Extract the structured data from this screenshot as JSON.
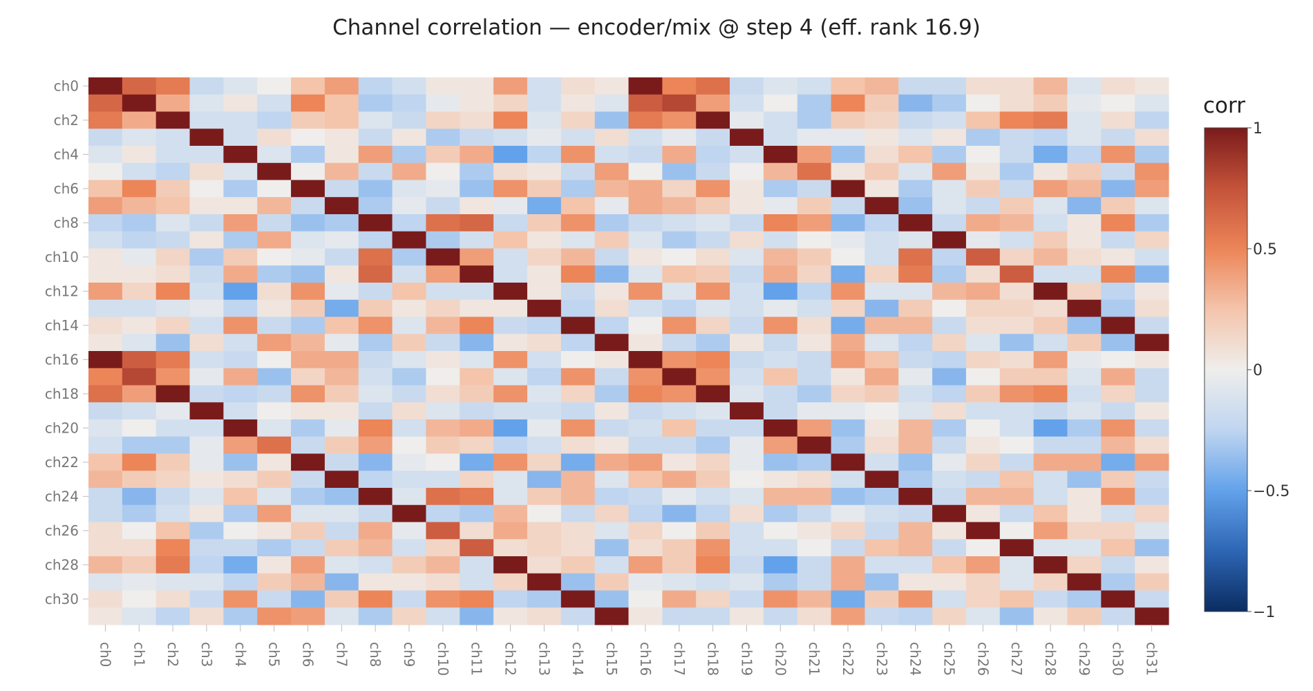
{
  "chart_data": {
    "type": "heatmap",
    "title": "Channel correlation — encoder/mix @ step 4 (eff. rank 16.9)",
    "colorbar_title": "corr",
    "colorbar_ticks": [
      1,
      0.5,
      0,
      -0.5,
      -1
    ],
    "colorbar_tick_labels": [
      "1",
      "0.5",
      "0",
      "−0.5",
      "−1"
    ],
    "zmin": -1,
    "zmax": 1,
    "colorscale": [
      "#0b2c61",
      "#2d66b4",
      "#63a2ea",
      "#bfd5f0",
      "#efeeec",
      "#f4c4ab",
      "#ec8558",
      "#c4533a",
      "#7a1b1b"
    ],
    "labels": [
      "ch0",
      "ch1",
      "ch2",
      "ch3",
      "ch4",
      "ch5",
      "ch6",
      "ch7",
      "ch8",
      "ch9",
      "ch10",
      "ch11",
      "ch12",
      "ch13",
      "ch14",
      "ch15",
      "ch16",
      "ch17",
      "ch18",
      "ch19",
      "ch20",
      "ch21",
      "ch22",
      "ch23",
      "ch24",
      "ch25",
      "ch26",
      "ch27",
      "ch28",
      "ch29",
      "ch30",
      "ch31"
    ],
    "y_tick_labels": [
      "ch0",
      "ch2",
      "ch4",
      "ch6",
      "ch8",
      "ch10",
      "ch12",
      "ch14",
      "ch16",
      "ch18",
      "ch20",
      "ch22",
      "ch24",
      "ch26",
      "ch28",
      "ch30"
    ],
    "values": [
      [
        1,
        0.65,
        0.55,
        -0.2,
        -0.1,
        0,
        0.25,
        0.4,
        -0.25,
        -0.15,
        0.05,
        0.05,
        0.4,
        -0.15,
        0.1,
        0.05,
        1,
        0.5,
        0.6,
        -0.2,
        -0.1,
        -0.15,
        0.25,
        0.3,
        -0.2,
        -0.2,
        0.1,
        0.1,
        0.3,
        -0.1,
        0.1,
        0.05
      ],
      [
        0.65,
        1,
        0.35,
        -0.1,
        0.05,
        -0.15,
        0.5,
        0.25,
        -0.3,
        -0.25,
        -0.05,
        0.05,
        0.15,
        -0.15,
        0.05,
        -0.1,
        0.7,
        0.8,
        0.4,
        -0.15,
        0,
        -0.3,
        0.5,
        0.2,
        -0.4,
        -0.3,
        0,
        0.1,
        0.2,
        -0.05,
        0,
        -0.1
      ],
      [
        0.55,
        0.35,
        1,
        -0.15,
        -0.15,
        -0.25,
        0.2,
        0.25,
        -0.1,
        -0.2,
        0.15,
        0.1,
        0.5,
        -0.1,
        0.15,
        -0.35,
        0.55,
        0.45,
        1,
        -0.05,
        -0.15,
        -0.3,
        0.2,
        0.15,
        -0.2,
        -0.15,
        0.25,
        0.5,
        0.55,
        -0.1,
        0.1,
        -0.25
      ],
      [
        -0.2,
        -0.1,
        -0.15,
        1,
        -0.15,
        0.1,
        0,
        0.05,
        -0.2,
        0.05,
        -0.3,
        -0.2,
        -0.15,
        -0.05,
        -0.15,
        0.1,
        -0.15,
        -0.05,
        -0.2,
        1,
        -0.15,
        -0.05,
        -0.05,
        0.05,
        -0.1,
        0.05,
        -0.3,
        -0.2,
        -0.25,
        -0.1,
        -0.2,
        0.1
      ],
      [
        -0.1,
        0.05,
        -0.15,
        -0.15,
        1,
        -0.1,
        -0.3,
        0.05,
        0.4,
        -0.3,
        0.2,
        0.35,
        -0.5,
        -0.25,
        0.45,
        -0.15,
        -0.2,
        0.35,
        -0.25,
        -0.15,
        1,
        0.4,
        -0.35,
        0.1,
        0.25,
        -0.3,
        0,
        -0.2,
        -0.45,
        -0.25,
        0.45,
        -0.3
      ],
      [
        0,
        -0.15,
        -0.25,
        0.1,
        -0.1,
        1,
        0,
        0.3,
        -0.2,
        0.35,
        0,
        -0.3,
        0.1,
        0.05,
        -0.2,
        0.4,
        0,
        -0.35,
        -0.2,
        0,
        0.3,
        0.6,
        0.05,
        0.2,
        -0.1,
        0.4,
        0.05,
        -0.3,
        0.05,
        0.2,
        -0.2,
        0.45
      ],
      [
        0.25,
        0.5,
        0.2,
        0,
        -0.3,
        0,
        1,
        -0.2,
        -0.35,
        -0.1,
        -0.05,
        -0.35,
        0.45,
        0.2,
        -0.3,
        0.3,
        0.35,
        0.15,
        0.45,
        0.05,
        -0.3,
        -0.2,
        1,
        0.05,
        -0.3,
        -0.1,
        0.2,
        -0.2,
        0.4,
        0.3,
        -0.4,
        0.4
      ],
      [
        0.4,
        0.3,
        0.25,
        0.05,
        0.05,
        0.3,
        -0.2,
        1,
        -0.3,
        -0.05,
        -0.2,
        0.05,
        -0.05,
        -0.45,
        0.25,
        -0.05,
        0.35,
        0.3,
        0.2,
        0.05,
        -0.05,
        0.2,
        -0.2,
        1,
        -0.35,
        -0.1,
        -0.2,
        0.2,
        -0.1,
        -0.4,
        0.2,
        -0.1
      ],
      [
        -0.25,
        -0.3,
        -0.1,
        -0.2,
        0.4,
        -0.2,
        -0.35,
        -0.3,
        1,
        -0.25,
        0.6,
        0.65,
        -0.2,
        0.2,
        0.45,
        -0.3,
        -0.2,
        -0.15,
        -0.1,
        -0.2,
        0.5,
        0.4,
        -0.4,
        -0.25,
        1,
        -0.2,
        0.35,
        0.3,
        -0.15,
        0.05,
        0.5,
        -0.3
      ],
      [
        -0.15,
        -0.25,
        -0.2,
        0.05,
        -0.3,
        0.35,
        -0.1,
        -0.05,
        -0.25,
        1,
        -0.3,
        -0.15,
        0.25,
        0.05,
        -0.1,
        0.2,
        -0.1,
        -0.3,
        -0.2,
        0.1,
        -0.15,
        0,
        -0.05,
        -0.15,
        -0.1,
        1,
        -0.05,
        -0.15,
        0.2,
        0.05,
        -0.2,
        0.15
      ],
      [
        0.05,
        -0.05,
        0.15,
        -0.3,
        0.2,
        0,
        -0.05,
        -0.2,
        0.6,
        -0.3,
        1,
        0.4,
        -0.15,
        0.15,
        0.3,
        -0.2,
        0.05,
        0,
        0.1,
        -0.1,
        0.3,
        0.2,
        0,
        -0.15,
        0.6,
        -0.25,
        0.7,
        0.15,
        0.3,
        0.1,
        0.05,
        -0.15
      ],
      [
        0.05,
        0.05,
        0.1,
        -0.2,
        0.35,
        -0.3,
        -0.35,
        0.05,
        0.65,
        -0.15,
        0.4,
        1,
        -0.15,
        0.05,
        0.5,
        -0.4,
        -0.1,
        0.25,
        0.2,
        -0.2,
        0.35,
        0.15,
        -0.45,
        0.15,
        0.55,
        -0.3,
        0.1,
        0.7,
        -0.15,
        -0.15,
        0.5,
        -0.4
      ],
      [
        0.4,
        0.15,
        0.5,
        -0.15,
        -0.5,
        0.1,
        0.45,
        -0.05,
        -0.2,
        0.25,
        -0.15,
        -0.15,
        1,
        0.05,
        -0.2,
        0.05,
        0.45,
        -0.1,
        0.45,
        -0.15,
        -0.5,
        -0.25,
        0.45,
        -0.1,
        -0.1,
        0.3,
        0.35,
        0.1,
        1,
        0.15,
        -0.25,
        0.05
      ],
      [
        -0.15,
        -0.15,
        -0.1,
        -0.05,
        -0.25,
        0.05,
        0.2,
        -0.45,
        0.2,
        0.05,
        0.15,
        0.05,
        0.05,
        1,
        -0.25,
        0.1,
        -0.15,
        -0.25,
        -0.1,
        -0.15,
        -0.05,
        -0.15,
        0.15,
        -0.4,
        0.2,
        0,
        0.15,
        0.15,
        0.1,
        1,
        -0.3,
        0.1
      ],
      [
        0.1,
        0.05,
        0.15,
        -0.15,
        0.45,
        -0.2,
        -0.3,
        0.25,
        0.45,
        -0.1,
        0.3,
        0.5,
        -0.2,
        -0.25,
        1,
        -0.25,
        0,
        0.45,
        0.15,
        -0.2,
        0.45,
        0.1,
        -0.45,
        0.3,
        0.3,
        -0.2,
        0.1,
        0.1,
        0.2,
        -0.35,
        1,
        -0.2
      ],
      [
        0.05,
        -0.1,
        -0.35,
        0.1,
        -0.15,
        0.4,
        0.3,
        -0.05,
        -0.3,
        0.2,
        -0.2,
        -0.4,
        0.05,
        0.1,
        -0.25,
        1,
        0.05,
        -0.2,
        -0.3,
        0.05,
        -0.2,
        0.05,
        0.35,
        -0.1,
        -0.25,
        0.15,
        -0.1,
        -0.35,
        -0.15,
        0.2,
        -0.35,
        1
      ],
      [
        1,
        0.7,
        0.55,
        -0.15,
        -0.2,
        0,
        0.35,
        0.35,
        -0.2,
        -0.1,
        0.05,
        -0.1,
        0.45,
        -0.15,
        0,
        0.05,
        1,
        0.45,
        0.5,
        -0.2,
        -0.15,
        -0.2,
        0.4,
        0.25,
        -0.2,
        -0.25,
        0.15,
        0.1,
        0.4,
        -0.05,
        0,
        0.05
      ],
      [
        0.5,
        0.8,
        0.45,
        -0.05,
        0.35,
        -0.35,
        0.15,
        0.3,
        -0.15,
        -0.3,
        0,
        0.25,
        -0.1,
        -0.25,
        0.45,
        -0.2,
        0.45,
        1,
        0.45,
        -0.15,
        0.25,
        -0.2,
        0.05,
        0.35,
        -0.05,
        -0.4,
        0,
        0.2,
        0.2,
        -0.1,
        0.35,
        -0.2
      ],
      [
        0.6,
        0.4,
        1,
        -0.2,
        -0.25,
        -0.2,
        0.45,
        0.2,
        -0.1,
        -0.2,
        0.1,
        0.2,
        0.45,
        -0.1,
        0.15,
        -0.3,
        0.5,
        0.45,
        1,
        -0.1,
        -0.2,
        -0.3,
        0.15,
        0.2,
        -0.15,
        -0.25,
        0.2,
        0.45,
        0.5,
        -0.15,
        0.15,
        -0.2
      ],
      [
        -0.2,
        -0.15,
        -0.05,
        1,
        -0.15,
        0,
        0.05,
        0.05,
        -0.2,
        0.1,
        -0.1,
        -0.2,
        -0.15,
        -0.15,
        -0.2,
        0.05,
        -0.2,
        -0.15,
        -0.1,
        1,
        -0.2,
        -0.05,
        -0.05,
        0,
        -0.1,
        0.1,
        -0.15,
        -0.15,
        -0.2,
        -0.1,
        -0.2,
        0.05
      ],
      [
        -0.1,
        0,
        -0.15,
        -0.15,
        1,
        -0.1,
        -0.3,
        -0.05,
        0.5,
        -0.15,
        0.3,
        0.35,
        -0.5,
        -0.05,
        0.45,
        -0.2,
        -0.15,
        0.25,
        -0.2,
        -0.2,
        1,
        0.4,
        -0.35,
        0.05,
        0.3,
        -0.3,
        0,
        -0.15,
        -0.5,
        -0.3,
        0.45,
        -0.2
      ],
      [
        -0.15,
        -0.3,
        -0.3,
        -0.05,
        0.4,
        0.6,
        -0.2,
        0.2,
        0.4,
        0,
        0.2,
        0.15,
        -0.25,
        -0.15,
        0.1,
        0.05,
        -0.2,
        -0.2,
        -0.3,
        -0.05,
        0.4,
        1,
        -0.3,
        0.1,
        0.3,
        -0.2,
        0.05,
        0,
        -0.2,
        -0.2,
        0.3,
        0.1
      ],
      [
        0.25,
        0.5,
        0.2,
        -0.05,
        -0.35,
        0.05,
        1,
        -0.2,
        -0.4,
        -0.05,
        0,
        -0.45,
        0.45,
        0.15,
        -0.45,
        0.35,
        0.4,
        0.05,
        0.15,
        -0.05,
        -0.35,
        -0.3,
        1,
        -0.15,
        -0.35,
        -0.05,
        0.15,
        -0.2,
        0.35,
        0.35,
        -0.45,
        0.4
      ],
      [
        0.3,
        0.2,
        0.15,
        0.05,
        0.1,
        0.2,
        -0.2,
        1,
        -0.25,
        -0.15,
        -0.15,
        0.15,
        -0.1,
        -0.4,
        0.3,
        -0.1,
        0.25,
        0.35,
        0.2,
        0,
        0.05,
        0.1,
        -0.15,
        1,
        -0.3,
        -0.15,
        -0.2,
        0.25,
        -0.15,
        -0.35,
        0.2,
        -0.2
      ],
      [
        -0.2,
        -0.4,
        -0.2,
        -0.1,
        0.25,
        -0.1,
        -0.3,
        -0.35,
        1,
        -0.1,
        0.6,
        0.55,
        -0.1,
        0.2,
        0.3,
        -0.25,
        -0.2,
        -0.05,
        -0.15,
        -0.1,
        0.3,
        0.3,
        -0.35,
        -0.3,
        1,
        -0.2,
        0.3,
        0.3,
        -0.15,
        0.05,
        0.45,
        -0.25
      ],
      [
        -0.2,
        -0.3,
        -0.15,
        0.05,
        -0.3,
        0.4,
        -0.1,
        -0.1,
        -0.2,
        1,
        -0.25,
        -0.3,
        0.3,
        0,
        -0.2,
        0.15,
        -0.25,
        -0.4,
        -0.25,
        0.1,
        -0.3,
        -0.2,
        -0.05,
        -0.15,
        -0.2,
        1,
        0.05,
        -0.2,
        0.25,
        0.05,
        -0.15,
        0.15
      ],
      [
        0.1,
        0,
        0.25,
        -0.3,
        0,
        0.05,
        0.2,
        -0.2,
        0.35,
        -0.05,
        0.7,
        0.1,
        0.35,
        0.15,
        0.1,
        -0.1,
        0.15,
        0,
        0.2,
        -0.15,
        0,
        0.05,
        0.15,
        -0.2,
        0.3,
        0.05,
        1,
        0,
        0.4,
        0.15,
        0.15,
        -0.1
      ],
      [
        0.1,
        0.1,
        0.5,
        -0.2,
        -0.2,
        -0.3,
        -0.2,
        0.2,
        0.3,
        -0.15,
        0.15,
        0.7,
        0.1,
        0.15,
        0.1,
        -0.35,
        0.1,
        0.2,
        0.45,
        -0.15,
        -0.15,
        0,
        -0.2,
        0.25,
        0.3,
        -0.2,
        0,
        1,
        -0.1,
        -0.1,
        0.25,
        -0.35
      ],
      [
        0.3,
        0.2,
        0.55,
        -0.25,
        -0.45,
        0.05,
        0.4,
        -0.1,
        -0.15,
        0.2,
        0.3,
        -0.15,
        1,
        0.1,
        0.2,
        -0.15,
        0.4,
        0.2,
        0.5,
        -0.2,
        -0.5,
        -0.2,
        0.35,
        -0.15,
        -0.15,
        0.25,
        0.4,
        -0.1,
        1,
        0.15,
        -0.2,
        0.05
      ],
      [
        -0.1,
        -0.05,
        -0.1,
        -0.1,
        -0.25,
        0.2,
        0.3,
        -0.4,
        0.05,
        0.05,
        0.1,
        -0.15,
        0.15,
        1,
        -0.35,
        0.2,
        -0.05,
        -0.1,
        -0.15,
        -0.1,
        -0.3,
        -0.2,
        0.35,
        -0.35,
        0.05,
        0.05,
        0.15,
        -0.1,
        0.15,
        1,
        -0.3,
        0.2
      ],
      [
        0.1,
        0,
        0.1,
        -0.2,
        0.45,
        -0.2,
        -0.4,
        0.2,
        0.5,
        -0.2,
        0.45,
        0.5,
        -0.25,
        -0.3,
        1,
        -0.35,
        0,
        0.35,
        0.15,
        -0.2,
        0.45,
        0.3,
        -0.45,
        0.2,
        0.45,
        -0.15,
        0.15,
        0.25,
        -0.2,
        -0.3,
        1,
        -0.2
      ],
      [
        0.05,
        -0.1,
        -0.25,
        0.1,
        -0.3,
        0.45,
        0.4,
        -0.1,
        -0.3,
        0.15,
        -0.15,
        -0.4,
        0.05,
        0.1,
        -0.2,
        1,
        0.05,
        -0.2,
        -0.2,
        0.05,
        -0.2,
        0.1,
        0.4,
        -0.2,
        -0.25,
        0.15,
        -0.1,
        -0.35,
        0.05,
        0.2,
        -0.2,
        1
      ]
    ]
  }
}
